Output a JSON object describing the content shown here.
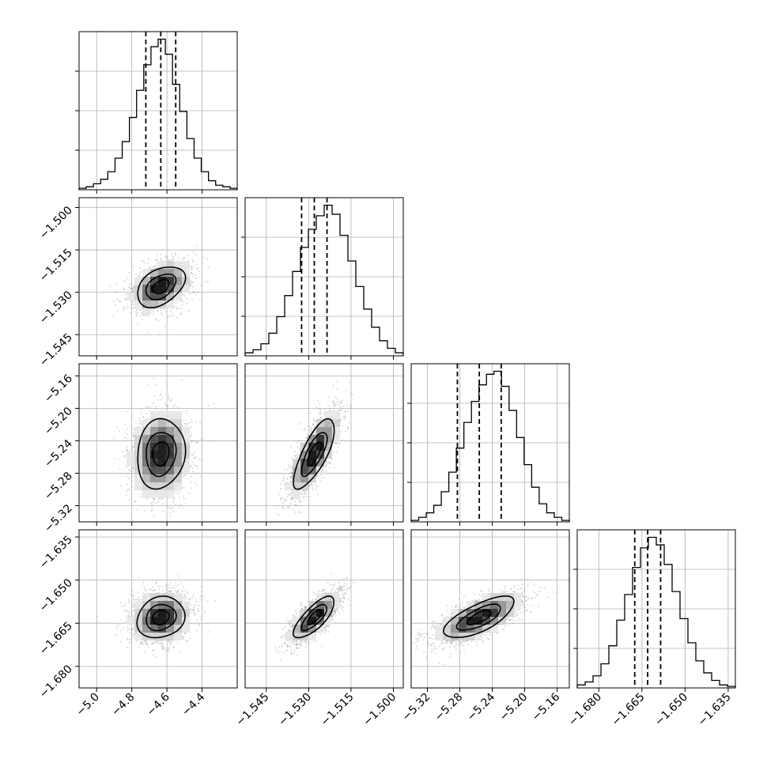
{
  "chart_data": {
    "type": "corner",
    "parameters": [
      {
        "range": [
          -5.1,
          -4.2
        ],
        "ticks": [
          -5.0,
          -4.8,
          -4.6,
          -4.4
        ],
        "tick_labels": [
          "−5.0",
          "−4.8",
          "−4.6",
          "−4.4"
        ],
        "quantiles": [
          -4.72,
          -4.635,
          -4.55
        ],
        "hist_weights": [
          0.01,
          0.02,
          0.04,
          0.07,
          0.12,
          0.21,
          0.32,
          0.48,
          0.66,
          0.83,
          0.95,
          1.0,
          0.9,
          0.7,
          0.52,
          0.34,
          0.21,
          0.12,
          0.06,
          0.03,
          0.02,
          0.01
        ]
      },
      {
        "range": [
          -1.5525,
          -1.4965
        ],
        "ticks": [
          -1.545,
          -1.53,
          -1.515,
          -1.5
        ],
        "tick_labels": [
          "−1.545",
          "−1.530",
          "−1.515",
          "−1.500"
        ],
        "quantiles": [
          -1.5325,
          -1.528,
          -1.5235
        ],
        "hist_weights": [
          0.02,
          0.04,
          0.08,
          0.15,
          0.26,
          0.4,
          0.56,
          0.72,
          0.84,
          0.93,
          1.0,
          0.94,
          0.8,
          0.63,
          0.46,
          0.31,
          0.19,
          0.1,
          0.05,
          0.02
        ]
      },
      {
        "range": [
          -5.34,
          -5.145
        ],
        "ticks": [
          -5.32,
          -5.28,
          -5.24,
          -5.2,
          -5.16
        ],
        "tick_labels": [
          "−5.32",
          "−5.28",
          "−5.24",
          "−5.20",
          "−5.16"
        ],
        "quantiles": [
          -5.283,
          -5.256,
          -5.229
        ],
        "hist_weights": [
          0.01,
          0.03,
          0.06,
          0.11,
          0.2,
          0.33,
          0.49,
          0.66,
          0.8,
          0.91,
          0.98,
          1.0,
          0.9,
          0.74,
          0.56,
          0.38,
          0.23,
          0.12,
          0.06,
          0.03,
          0.01
        ]
      },
      {
        "range": [
          -1.6875,
          -1.6325
        ],
        "ticks": [
          -1.68,
          -1.665,
          -1.65,
          -1.635
        ],
        "tick_labels": [
          "−1.680",
          "−1.665",
          "−1.650",
          "−1.635"
        ],
        "quantiles": [
          -1.6675,
          -1.663,
          -1.6585
        ],
        "hist_weights": [
          0.02,
          0.04,
          0.08,
          0.16,
          0.28,
          0.45,
          0.62,
          0.8,
          0.93,
          1.0,
          0.95,
          0.82,
          0.64,
          0.46,
          0.3,
          0.18,
          0.1,
          0.05,
          0.02,
          0.01
        ]
      }
    ],
    "correlations": [
      [
        1.0,
        0.4,
        0.1,
        0.15
      ],
      [
        0.4,
        1.0,
        0.75,
        0.75
      ],
      [
        0.1,
        0.75,
        1.0,
        0.7
      ],
      [
        0.15,
        0.75,
        0.7,
        1.0
      ]
    ],
    "samples_per_panel": 1800,
    "grid": true,
    "colors": {
      "line": "#000000",
      "scatter": "#7f7f7f",
      "grid": "#b0b0b0"
    }
  }
}
